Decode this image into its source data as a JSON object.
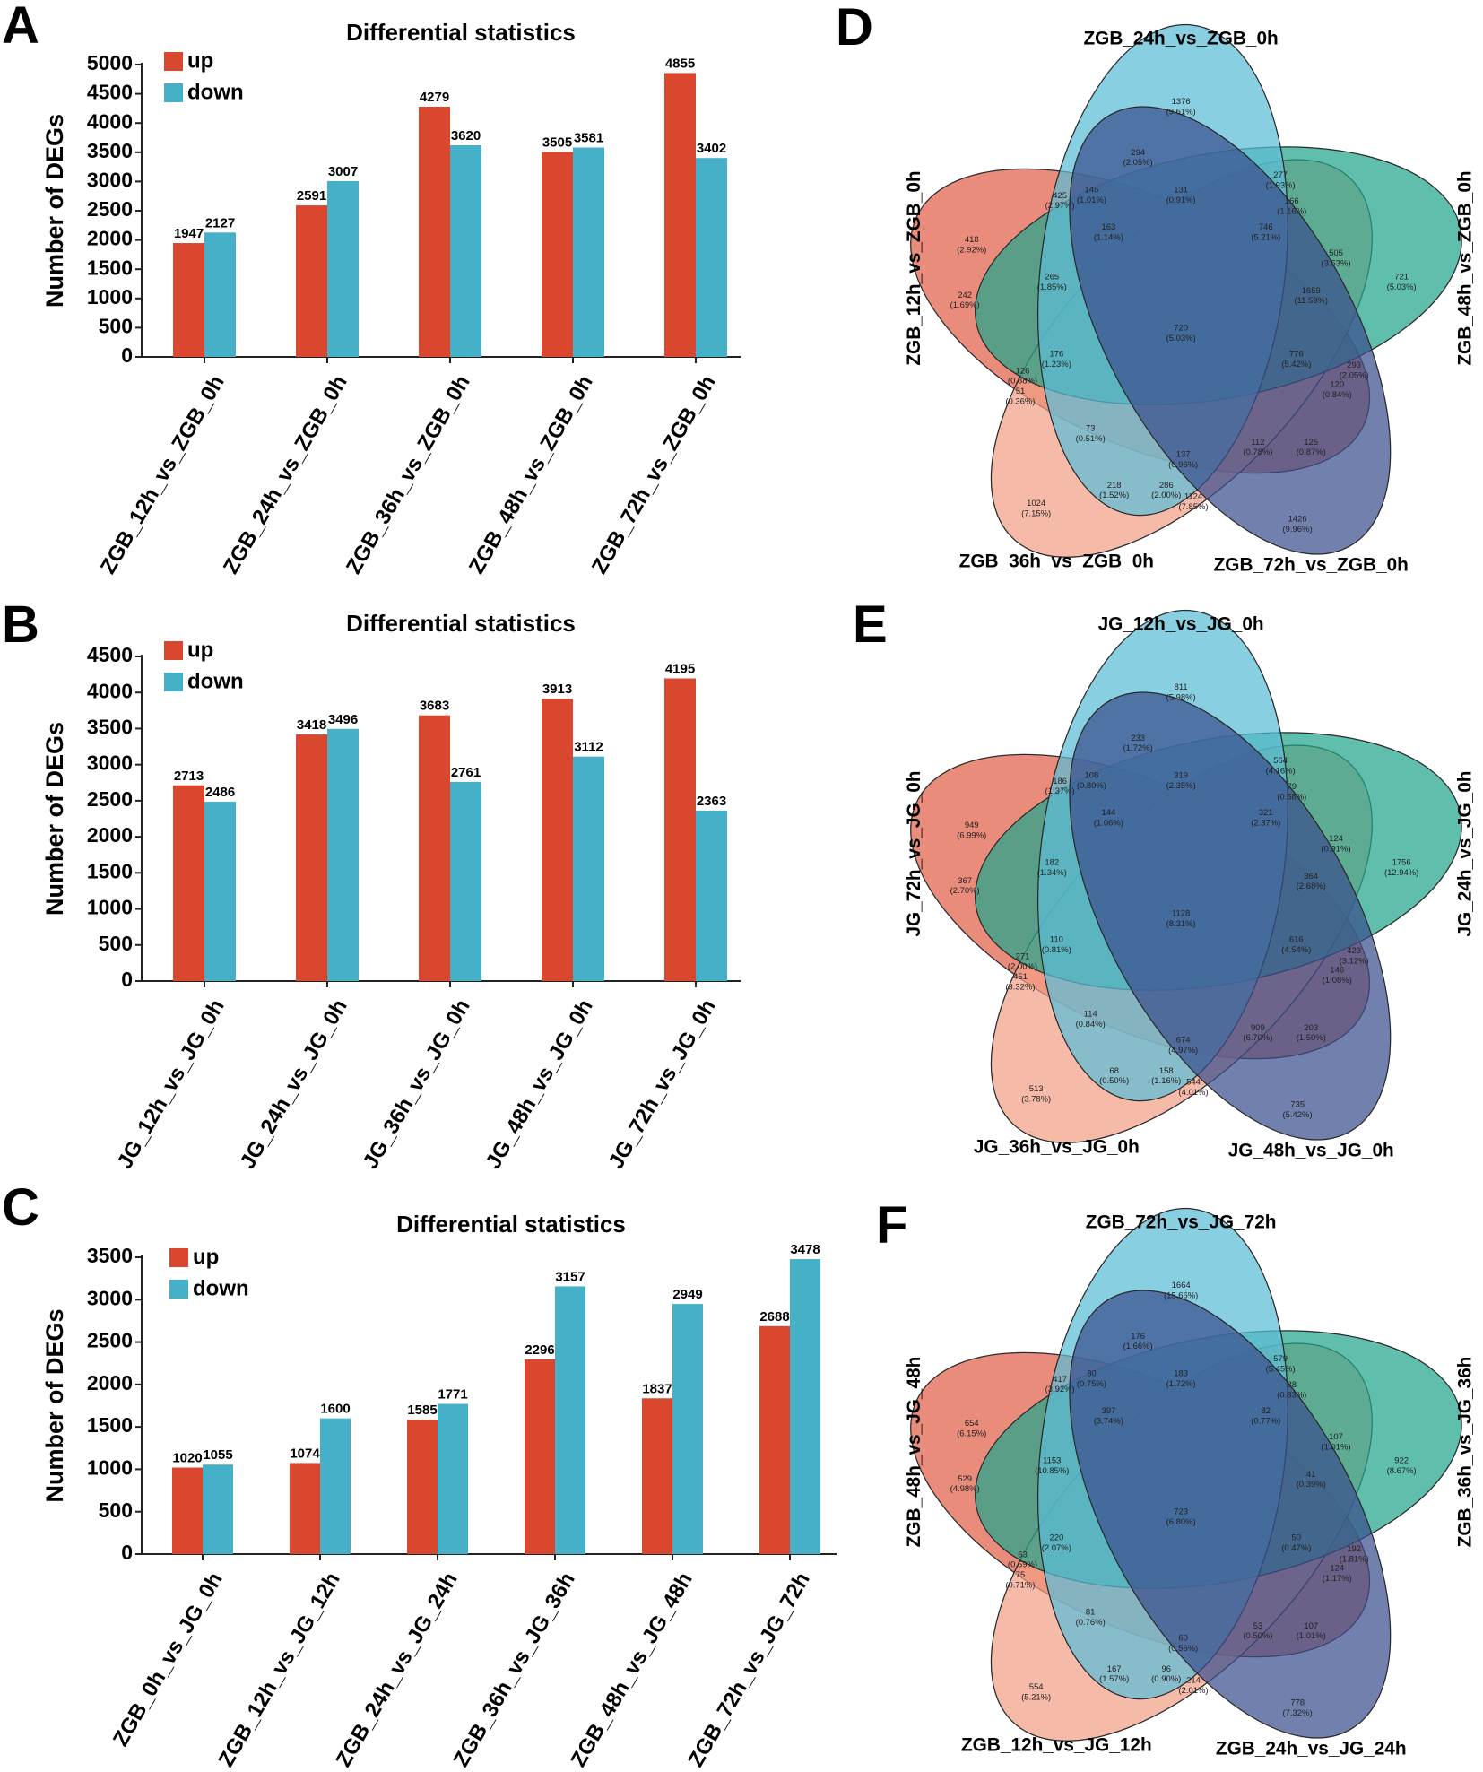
{
  "panels": {
    "A": "A",
    "B": "B",
    "C": "C",
    "D": "D",
    "E": "E",
    "F": "F"
  },
  "colors": {
    "up": "#d9472f",
    "down": "#45b0c8",
    "venn": [
      "#5bbdd7",
      "#22a58c",
      "#3a4f8e",
      "#f3a088",
      "#e1604a"
    ]
  },
  "chart_data": [
    {
      "type": "bar",
      "title": "Differential statistics",
      "xlabel": "",
      "ylabel": "Number of DEGs",
      "ylim": [
        0,
        5000
      ],
      "ytick_step": 500,
      "legend": "top-left",
      "categories": [
        "ZGB_12h_vs_ZGB_0h",
        "ZGB_24h_vs_ZGB_0h",
        "ZGB_36h_vs_ZGB_0h",
        "ZGB_48h_vs_ZGB_0h",
        "ZGB_72h_vs_ZGB_0h"
      ],
      "series": [
        {
          "name": "up",
          "values": [
            1947,
            2591,
            4279,
            3505,
            4855
          ]
        },
        {
          "name": "down",
          "values": [
            2127,
            3007,
            3620,
            3581,
            3402
          ]
        }
      ]
    },
    {
      "type": "bar",
      "title": "Differential statistics",
      "xlabel": "",
      "ylabel": "Number of DEGs",
      "ylim": [
        0,
        4500
      ],
      "ytick_step": 500,
      "legend": "top-left",
      "categories": [
        "JG_12h_vs_JG_0h",
        "JG_24h_vs_JG_0h",
        "JG_36h_vs_JG_0h",
        "JG_48h_vs_JG_0h",
        "JG_72h_vs_JG_0h"
      ],
      "series": [
        {
          "name": "up",
          "values": [
            2713,
            3418,
            3683,
            3913,
            4195
          ]
        },
        {
          "name": "down",
          "values": [
            2486,
            3496,
            2761,
            3112,
            2363
          ]
        }
      ]
    },
    {
      "type": "bar",
      "title": "Differential statistics",
      "xlabel": "",
      "ylabel": "Number of DEGs",
      "ylim": [
        0,
        3500
      ],
      "ytick_step": 500,
      "legend": "top-left",
      "categories": [
        "ZGB_0h_vs_JG_0h",
        "ZGB_12h_vs_JG_12h",
        "ZGB_24h_vs_JG_24h",
        "ZGB_36h_vs_JG_36h",
        "ZGB_48h_vs_JG_48h",
        "ZGB_72h_vs_JG_72h"
      ],
      "series": [
        {
          "name": "up",
          "values": [
            1020,
            1074,
            1585,
            2296,
            1837,
            2688
          ]
        },
        {
          "name": "down",
          "values": [
            1055,
            1600,
            1771,
            3157,
            2949,
            3478
          ]
        }
      ]
    }
  ],
  "venns": [
    {
      "sets": [
        "ZGB_24h_vs_ZGB_0h",
        "ZGB_48h_vs_ZGB_0h",
        "ZGB_72h_vs_ZGB_0h",
        "ZGB_36h_vs_ZGB_0h",
        "ZGB_12h_vs_ZGB_0h"
      ],
      "regions": [
        [
          "1376",
          "(9.61%)"
        ],
        [
          "294",
          "(2.05%)"
        ],
        [
          "277",
          "(1.93%)"
        ],
        [
          "425",
          "(2.97%)"
        ],
        [
          "145",
          "(1.01%)"
        ],
        [
          "131",
          "(0.91%)"
        ],
        [
          "166",
          "(1.16%)"
        ],
        [
          "163",
          "(1.14%)"
        ],
        [
          "746",
          "(5.21%)"
        ],
        [
          "418",
          "(2.92%)"
        ],
        [
          "505",
          "(3.53%)"
        ],
        [
          "721",
          "(5.03%)"
        ],
        [
          "265",
          "(1.85%)"
        ],
        [
          "242",
          "(1.69%)"
        ],
        [
          "1659",
          "(11.59%)"
        ],
        [
          "720",
          "(5.03%)"
        ],
        [
          "176",
          "(1.23%)"
        ],
        [
          "776",
          "(5.42%)"
        ],
        [
          "126",
          "(0.88%)"
        ],
        [
          "293",
          "(2.05%)"
        ],
        [
          "120",
          "(0.84%)"
        ],
        [
          "51",
          "(0.36%)"
        ],
        [
          "73",
          "(0.51%)"
        ],
        [
          "112",
          "(0.78%)"
        ],
        [
          "125",
          "(0.87%)"
        ],
        [
          "137",
          "(0.96%)"
        ],
        [
          "218",
          "(1.52%)"
        ],
        [
          "286",
          "(2.00%)"
        ],
        [
          "1124",
          "(7.85%)"
        ],
        [
          "1024",
          "(7.15%)"
        ],
        [
          "1426",
          "(9.96%)"
        ]
      ]
    },
    {
      "sets": [
        "JG_12h_vs_JG_0h",
        "JG_24h_vs_JG_0h",
        "JG_48h_vs_JG_0h",
        "JG_36h_vs_JG_0h",
        "JG_72h_vs_JG_0h"
      ],
      "regions": [
        [
          "811",
          "(5.98%)"
        ],
        [
          "233",
          "(1.72%)"
        ],
        [
          "564",
          "(4.16%)"
        ],
        [
          "186",
          "(1.37%)"
        ],
        [
          "108",
          "(0.80%)"
        ],
        [
          "319",
          "(2.35%)"
        ],
        [
          "79",
          "(0.58%)"
        ],
        [
          "144",
          "(1.06%)"
        ],
        [
          "321",
          "(2.37%)"
        ],
        [
          "949",
          "(6.99%)"
        ],
        [
          "124",
          "(0.91%)"
        ],
        [
          "1756",
          "(12.94%)"
        ],
        [
          "182",
          "(1.34%)"
        ],
        [
          "367",
          "(2.70%)"
        ],
        [
          "364",
          "(2.68%)"
        ],
        [
          "1128",
          "(8.31%)"
        ],
        [
          "110",
          "(0.81%)"
        ],
        [
          "616",
          "(4.54%)"
        ],
        [
          "271",
          "(2.00%)"
        ],
        [
          "423",
          "(3.12%)"
        ],
        [
          "146",
          "(1.08%)"
        ],
        [
          "451",
          "(3.32%)"
        ],
        [
          "114",
          "(0.84%)"
        ],
        [
          "909",
          "(6.70%)"
        ],
        [
          "203",
          "(1.50%)"
        ],
        [
          "674",
          "(4.97%)"
        ],
        [
          "68",
          "(0.50%)"
        ],
        [
          "158",
          "(1.16%)"
        ],
        [
          "544",
          "(4.01%)"
        ],
        [
          "513",
          "(3.78%)"
        ],
        [
          "735",
          "(5.42%)"
        ]
      ]
    },
    {
      "sets": [
        "ZGB_72h_vs_JG_72h",
        "ZGB_36h_vs_JG_36h",
        "ZGB_24h_vs_JG_24h",
        "ZGB_12h_vs_JG_12h",
        "ZGB_48h_vs_JG_48h"
      ],
      "regions": [
        [
          "1664",
          "(15.66%)"
        ],
        [
          "176",
          "(1.66%)"
        ],
        [
          "579",
          "(5.45%)"
        ],
        [
          "417",
          "(3.92%)"
        ],
        [
          "80",
          "(0.75%)"
        ],
        [
          "183",
          "(1.72%)"
        ],
        [
          "88",
          "(0.83%)"
        ],
        [
          "397",
          "(3.74%)"
        ],
        [
          "82",
          "(0.77%)"
        ],
        [
          "654",
          "(6.15%)"
        ],
        [
          "107",
          "(1.01%)"
        ],
        [
          "922",
          "(8.67%)"
        ],
        [
          "1153",
          "(10.85%)"
        ],
        [
          "529",
          "(4.98%)"
        ],
        [
          "41",
          "(0.39%)"
        ],
        [
          "723",
          "(6.80%)"
        ],
        [
          "220",
          "(2.07%)"
        ],
        [
          "50",
          "(0.47%)"
        ],
        [
          "63",
          "(0.59%)"
        ],
        [
          "192",
          "(1.81%)"
        ],
        [
          "124",
          "(1.17%)"
        ],
        [
          "75",
          "(0.71%)"
        ],
        [
          "81",
          "(0.76%)"
        ],
        [
          "53",
          "(0.50%)"
        ],
        [
          "107",
          "(1.01%)"
        ],
        [
          "60",
          "(0.56%)"
        ],
        [
          "167",
          "(1.57%)"
        ],
        [
          "96",
          "(0.90%)"
        ],
        [
          "214",
          "(2.01%)"
        ],
        [
          "554",
          "(5.21%)"
        ],
        [
          "778",
          "(7.32%)"
        ]
      ]
    }
  ]
}
